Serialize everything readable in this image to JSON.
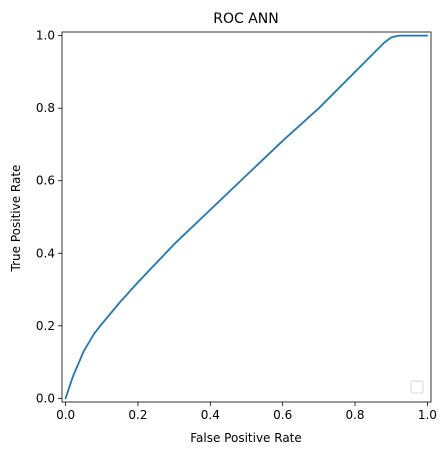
{
  "chart_data": {
    "type": "line",
    "title": "ROC ANN",
    "xlabel": "False Positive Rate",
    "ylabel": "True Positive Rate",
    "xlim": [
      -0.01,
      1.01
    ],
    "ylim": [
      -0.01,
      1.01
    ],
    "xticks": [
      "0.0",
      "0.2",
      "0.4",
      "0.6",
      "0.8",
      "1.0"
    ],
    "yticks": [
      "0.0",
      "0.2",
      "0.4",
      "0.6",
      "0.8",
      "1.0"
    ],
    "grid": false,
    "legend": "lower-right",
    "series": [
      {
        "color": "#1f77b4",
        "x": [
          0.0,
          0.02,
          0.05,
          0.08,
          0.1,
          0.15,
          0.2,
          0.3,
          0.4,
          0.5,
          0.6,
          0.7,
          0.8,
          0.85,
          0.88,
          0.9,
          0.92,
          0.95,
          1.0
        ],
        "y": [
          0.0,
          0.06,
          0.13,
          0.18,
          0.205,
          0.265,
          0.32,
          0.425,
          0.52,
          0.615,
          0.71,
          0.8,
          0.9,
          0.95,
          0.98,
          0.995,
          1.0,
          1.0,
          1.0
        ]
      }
    ]
  }
}
